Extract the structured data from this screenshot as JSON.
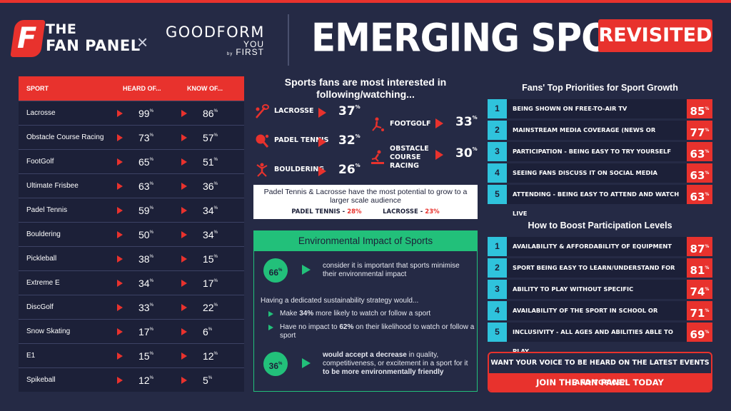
{
  "header": {
    "brand_line1": "THE",
    "brand_line2": "FAN PANEL",
    "times": "×",
    "partner": "GOODFORM",
    "partner_sub1": "YOU",
    "partner_by": "by",
    "partner_sub2": "FIRST",
    "headline": "EMERGING SPORTS",
    "badge": "REVISITED"
  },
  "table": {
    "headers": [
      "SPORT",
      "HEARD OF...",
      "KNOW OF..."
    ],
    "rows": [
      {
        "sport": "Lacrosse",
        "heard": "99",
        "know": "86"
      },
      {
        "sport": "Obstacle Course Racing",
        "heard": "73",
        "know": "57"
      },
      {
        "sport": "FootGolf",
        "heard": "65",
        "know": "51"
      },
      {
        "sport": "Ultimate Frisbee",
        "heard": "63",
        "know": "36"
      },
      {
        "sport": "Padel Tennis",
        "heard": "59",
        "know": "34"
      },
      {
        "sport": "Bouldering",
        "heard": "50",
        "know": "34"
      },
      {
        "sport": "Pickleball",
        "heard": "38",
        "know": "15"
      },
      {
        "sport": "Extreme E",
        "heard": "34",
        "know": "17"
      },
      {
        "sport": "DiscGolf",
        "heard": "33",
        "know": "22"
      },
      {
        "sport": "Snow Skating",
        "heard": "17",
        "know": "6"
      },
      {
        "sport": "E1",
        "heard": "15",
        "know": "12"
      },
      {
        "sport": "Spikeball",
        "heard": "12",
        "know": "5"
      }
    ],
    "pct_sign": "%"
  },
  "interest": {
    "title": "Sports fans are most interested in following/watching...",
    "items": [
      {
        "label": "LACROSSE",
        "value": "37",
        "icon": "lacrosse-icon"
      },
      {
        "label": "PADEL TENNIS",
        "value": "32",
        "icon": "padel-icon"
      },
      {
        "label": "BOULDERING",
        "value": "26",
        "icon": "bouldering-icon"
      },
      {
        "label": "FOOTGOLF",
        "value": "33",
        "icon": "footgolf-icon"
      },
      {
        "label": "OBSTACLE COURSE RACING",
        "label_l1": "OBSTACLE",
        "label_l2": "COURSE",
        "label_l3": "RACING",
        "value": "30",
        "icon": "obstacle-icon"
      }
    ],
    "potential_text": "Padel Tennis & Lacrosse have the most potential to grow to a larger scale audience",
    "potential_a_label": "PADEL TENNIS -",
    "potential_a_value": "28%",
    "potential_b_label": "LACROSSE -",
    "potential_b_value": "23%"
  },
  "environment": {
    "title": "Environmental Impact of Sports",
    "stat1_value": "66",
    "stat1_text": "consider it is important that sports minimise their environmental impact",
    "strategy_lead": "Having a dedicated sustainability strategy would...",
    "bullet1_a": "Make ",
    "bullet1_b": "34%",
    "bullet1_c": " more likely to watch or follow a sport",
    "bullet2_a": "Have no impact to ",
    "bullet2_b": "62%",
    "bullet2_c": " on their likelihood to watch or follow a sport",
    "stat2_value": "36",
    "stat2_a": "would accept a decrease",
    "stat2_b": " in quality, competitiveness, or excitement in a sport for it ",
    "stat2_c": "to be more environmentally friendly"
  },
  "priorities": {
    "title": "Fans' Top Priorities for Sport Growth",
    "items": [
      {
        "num": "1",
        "label": "BEING SHOWN ON FREE-TO-AIR TV",
        "value": "85"
      },
      {
        "num": "2",
        "label": "MAINSTREAM MEDIA COVERAGE (NEWS OR NEWSPAPERS)",
        "value": "77"
      },
      {
        "num": "3",
        "label": "PARTICIPATION - BEING EASY TO TRY YOURSELF",
        "value": "63"
      },
      {
        "num": "4",
        "label": "SEEING FANS DISCUSS IT ON SOCIAL MEDIA",
        "value": "63"
      },
      {
        "num": "5",
        "label": "ATTENDING - BEING EASY TO ATTEND AND WATCH LIVE",
        "value": "63"
      }
    ]
  },
  "participation": {
    "title": "How to Boost Participation Levels",
    "items": [
      {
        "num": "1",
        "label": "AVAILABILITY & AFFORDABILITY OF EQUIPMENT",
        "value": "87"
      },
      {
        "num": "2",
        "label": "SPORT BEING EASY TO LEARN/UNDERSTAND FOR NEWCOMERS",
        "value": "81"
      },
      {
        "num": "3",
        "label": "ABILITY TO PLAY WITHOUT SPECIFIC INFRASTRUCTURE",
        "value": "74"
      },
      {
        "num": "4",
        "label": "AVAILABILITY OF THE SPORT IN SCHOOL OR COLLEGE",
        "value": "71"
      },
      {
        "num": "5",
        "label": "INCLUSIVITY - ALL AGES AND ABILITIES ABLE TO PLAY",
        "value": "69"
      }
    ]
  },
  "cta": {
    "question": "WANT YOUR VOICE TO BE HEARD ON THE LATEST EVENTS AND TOPICS?",
    "button": "JOIN THE FAN PANEL TODAY"
  },
  "colors": {
    "red": "#e8322d",
    "green": "#22c07a",
    "cyan": "#2fc3dc",
    "navy": "#252a45",
    "panel": "#1c2038"
  }
}
